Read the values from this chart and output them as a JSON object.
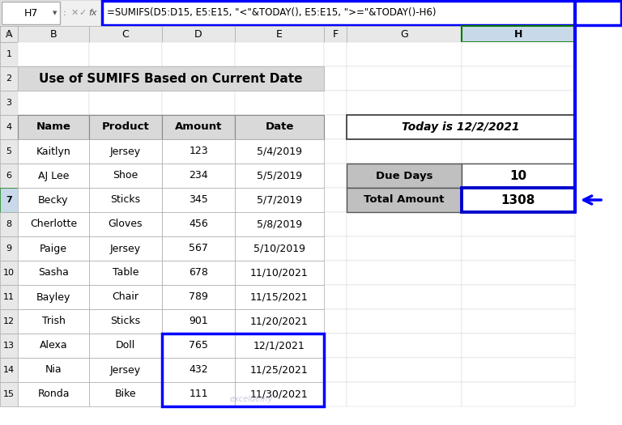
{
  "title": "Use of SUMIFS Based on Current Date",
  "formula_bar_cell": "H7",
  "formula_bar_text": "=SUMIFS(D5:D15, E5:E15, \"<\"&TODAY(), E5:E15, \">=\"&TODAY()-H6)",
  "col_headers": [
    "Name",
    "Product",
    "Amount",
    "Date"
  ],
  "col_letters_top": [
    "A",
    "B",
    "C",
    "D",
    "E",
    "F",
    "G",
    "H"
  ],
  "row_numbers": [
    "1",
    "2",
    "3",
    "4",
    "5",
    "6",
    "7",
    "8",
    "9",
    "10",
    "11",
    "12",
    "13",
    "14",
    "15"
  ],
  "table_data": [
    [
      "Kaitlyn",
      "Jersey",
      "123",
      "5/4/2019"
    ],
    [
      "AJ Lee",
      "Shoe",
      "234",
      "5/5/2019"
    ],
    [
      "Becky",
      "Sticks",
      "345",
      "5/7/2019"
    ],
    [
      "Cherlotte",
      "Gloves",
      "456",
      "5/8/2019"
    ],
    [
      "Paige",
      "Jersey",
      "567",
      "5/10/2019"
    ],
    [
      "Sasha",
      "Table",
      "678",
      "11/10/2021"
    ],
    [
      "Bayley",
      "Chair",
      "789",
      "11/15/2021"
    ],
    [
      "Trish",
      "Sticks",
      "901",
      "11/20/2021"
    ],
    [
      "Alexa",
      "Doll",
      "765",
      "12/1/2021"
    ],
    [
      "Nia",
      "Jersey",
      "432",
      "11/25/2021"
    ],
    [
      "Ronda",
      "Bike",
      "111",
      "11/30/2021"
    ]
  ],
  "today_text": "Today is 12/2/2021",
  "due_days_label": "Due Days",
  "due_days_value": "10",
  "total_amount_label": "Total Amount",
  "total_amount_value": "1308",
  "bg_color": "#ffffff",
  "header_fill": "#d9d9d9",
  "title_bg": "#d9d9d9",
  "blue_border_color": "#0000ff",
  "cell_border": "#000000",
  "grid_color": "#c0c0c0",
  "formula_bar_border": "#0000ff",
  "h_col_highlight": "#c8d9ea",
  "right_table_header_fill": "#c0c0c0",
  "selected_cell_border": "#0000cd",
  "arrow_color": "#0000ff",
  "col_hdr_bg": "#e8e8e8",
  "row_num_bg": "#e8e8e8"
}
